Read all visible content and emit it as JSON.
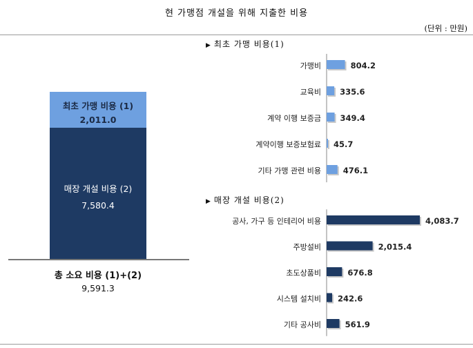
{
  "title": "현 가맹점 개설을 위해 지출한 비용",
  "unit": "(단위 : 만원)",
  "left": {
    "seg1_label": "최초 가맹 비용 (1)",
    "seg1_value": "2,011.0",
    "seg2_label": "매장 개설 비용 (2)",
    "seg2_value": "7,580.4",
    "total_label": "총 소요 비용 (1)+(2)",
    "total_value": "9,591.3"
  },
  "colors": {
    "light": "#6ea0e0",
    "dark": "#1e3a63"
  },
  "chart_data": [
    {
      "type": "bar",
      "orientation": "stacked-vertical",
      "title": "",
      "categories": [
        "총 소요 비용 (1)+(2)"
      ],
      "series": [
        {
          "name": "최초 가맹 비용 (1)",
          "values": [
            2011.0
          ]
        },
        {
          "name": "매장 개설 비용 (2)",
          "values": [
            7580.4
          ]
        }
      ],
      "total": 9591.3
    },
    {
      "type": "bar",
      "orientation": "horizontal",
      "title": "최초 가맹 비용(1)",
      "marker": "▶",
      "categories": [
        "가맹비",
        "교육비",
        "계약 이행 보증금",
        "계약이행 보증보험료",
        "기타 가맹 관련 비용"
      ],
      "values": [
        804.2,
        335.6,
        349.4,
        45.7,
        476.1
      ],
      "labels": [
        "804.2",
        "335.6",
        "349.4",
        "45.7",
        "476.1"
      ],
      "xlim": [
        0,
        4500
      ]
    },
    {
      "type": "bar",
      "orientation": "horizontal",
      "title": "매장 개설 비용(2)",
      "marker": "▶",
      "categories": [
        "공사, 가구 등 인테리어 비용",
        "주방설비",
        "초도상품비",
        "시스템 설치비",
        "기타 공사비"
      ],
      "values": [
        4083.7,
        2015.4,
        676.8,
        242.6,
        561.9
      ],
      "labels": [
        "4,083.7",
        "2,015.4",
        "676.8",
        "242.6",
        "561.9"
      ],
      "xlim": [
        0,
        4500
      ]
    }
  ]
}
